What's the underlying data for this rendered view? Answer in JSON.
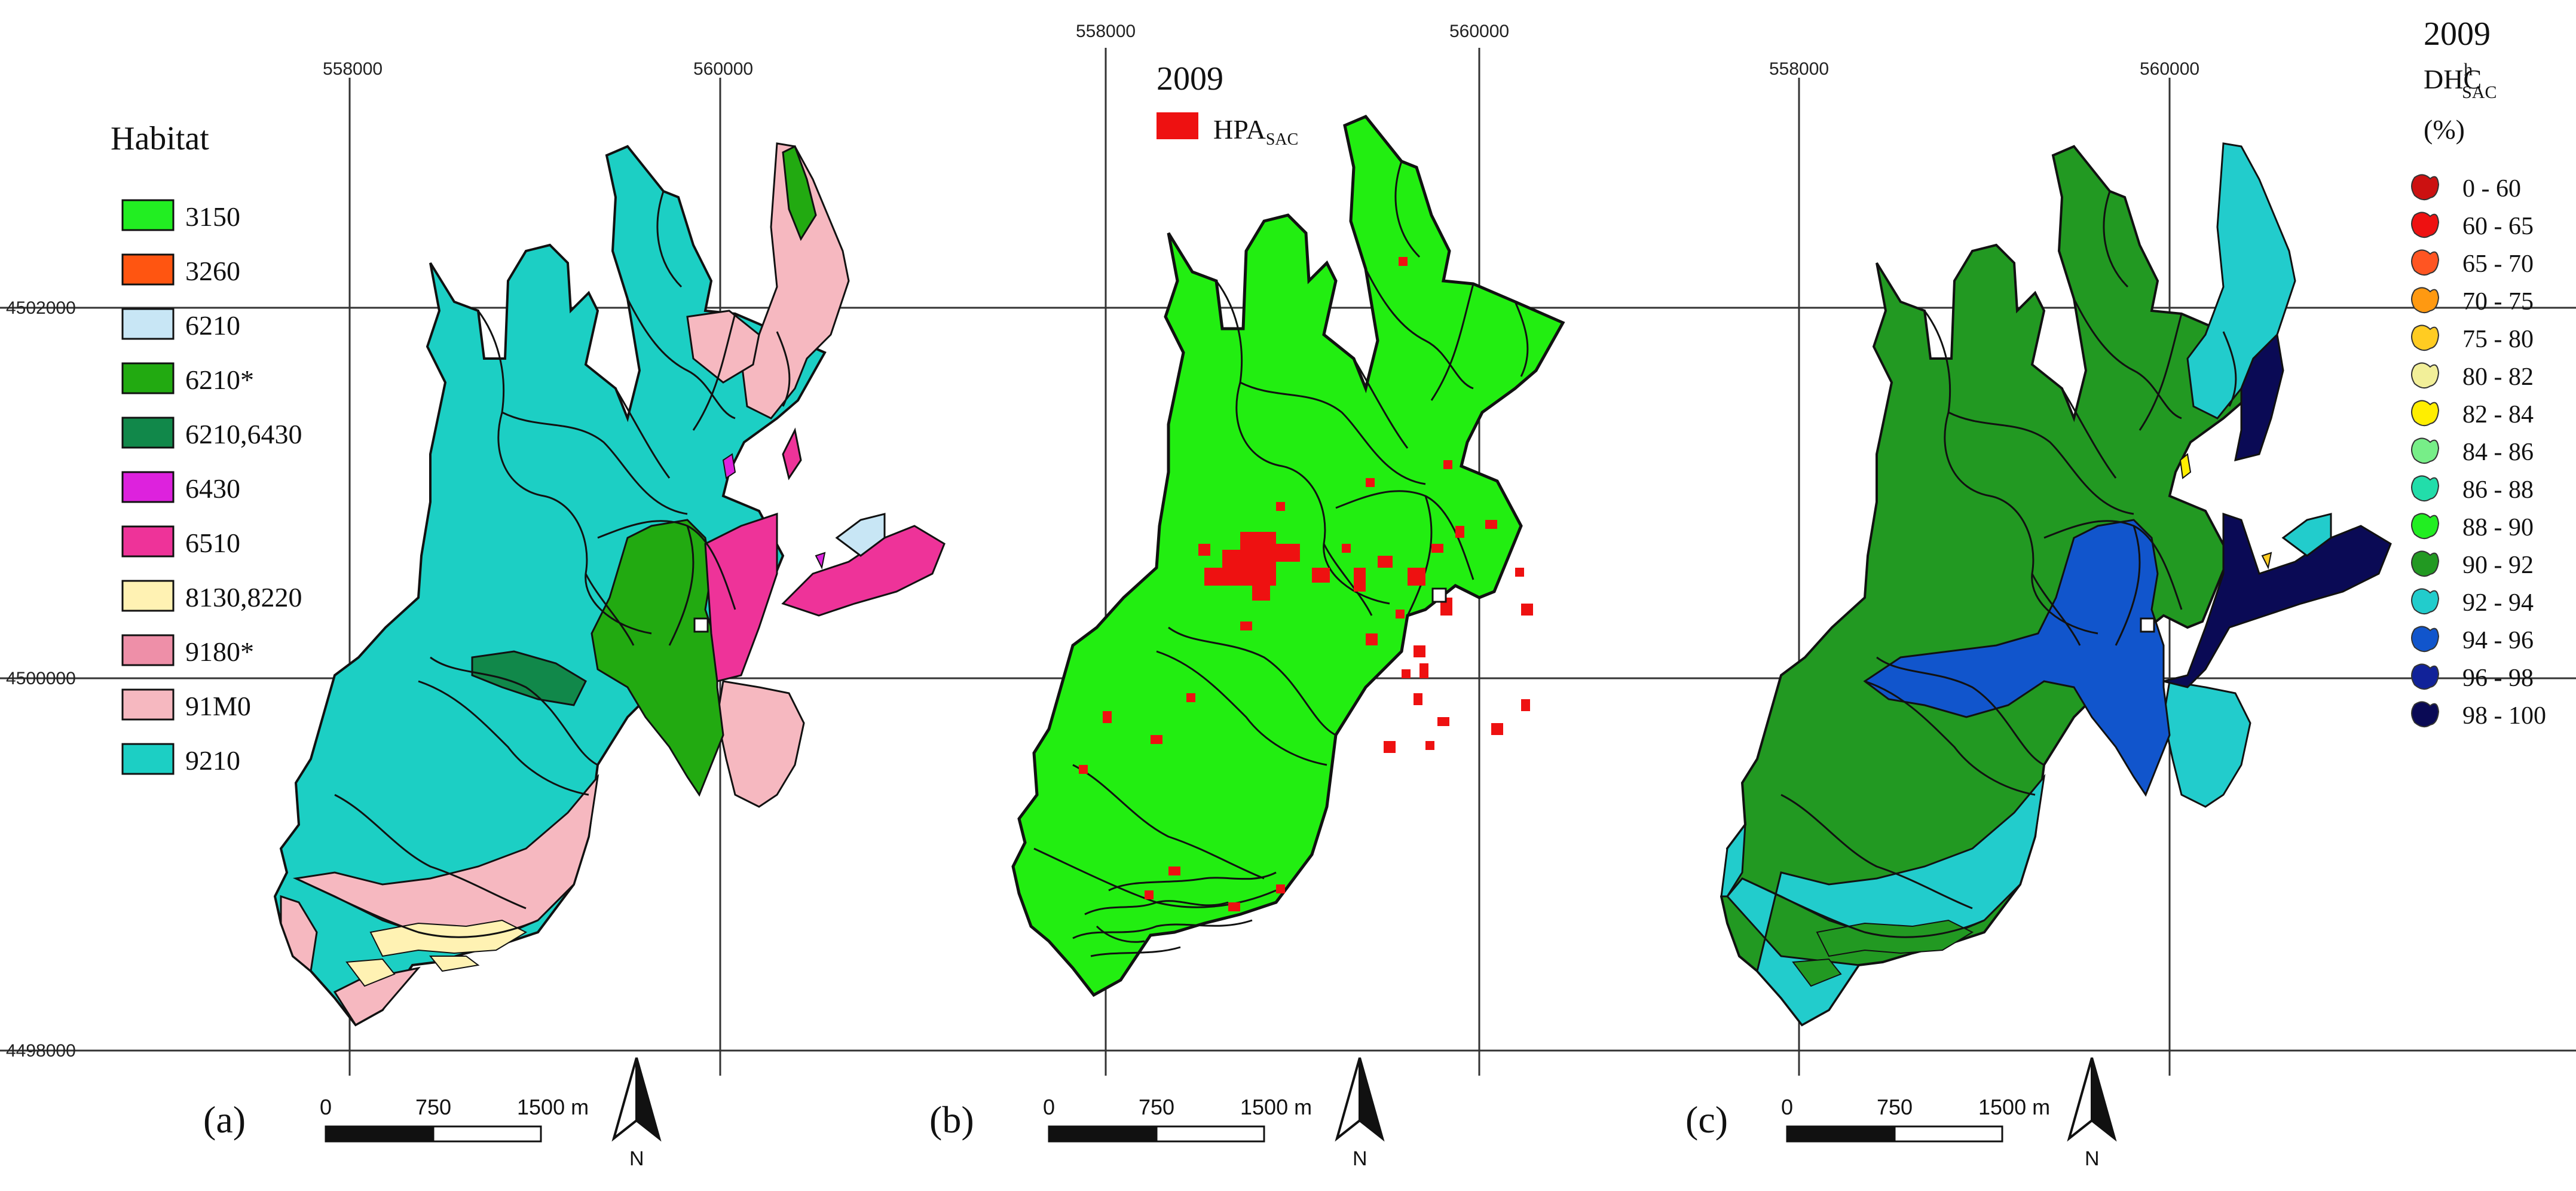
{
  "panels": [
    {
      "label": "(a)"
    },
    {
      "label": "(b)"
    },
    {
      "label": "(c)"
    }
  ],
  "coordinates": {
    "x_ticks": [
      "558000",
      "560000"
    ],
    "y_ticks": [
      "4502000",
      "4500000",
      "4498000"
    ]
  },
  "legend_a": {
    "title": "Habitat",
    "items": [
      {
        "label": "3150",
        "color": "#22ee22"
      },
      {
        "label": "3260",
        "color": "#ff5511"
      },
      {
        "label": "6210",
        "color": "#c8e6f5"
      },
      {
        "label": "6210*",
        "color": "#22aa11"
      },
      {
        "label": "6210,6430",
        "color": "#11884a"
      },
      {
        "label": "6430",
        "color": "#dd22dd"
      },
      {
        "label": "6510",
        "color": "#ee3399"
      },
      {
        "label": "8130,8220",
        "color": "#fff2b3"
      },
      {
        "label": "9180*",
        "color": "#ee8fa8"
      },
      {
        "label": "91M0",
        "color": "#f6b8c0"
      },
      {
        "label": "9210",
        "color": "#1ccfc4"
      }
    ]
  },
  "legend_b": {
    "year": "2009",
    "item_main": "HPA",
    "item_sub": "SAC",
    "color": "#ee1111",
    "base_color": "#22ee11"
  },
  "legend_c": {
    "year": "2009",
    "title_main": "DHC",
    "title_sup": "h",
    "title_sub": "SAC",
    "unit": "(%)",
    "items": [
      {
        "label": "0 - 60",
        "color": "#cc1111"
      },
      {
        "label": "60 - 65",
        "color": "#ee1111"
      },
      {
        "label": "65 - 70",
        "color": "#ff5522"
      },
      {
        "label": "70 - 75",
        "color": "#ff9911"
      },
      {
        "label": "75 - 80",
        "color": "#ffcc22"
      },
      {
        "label": "80 - 82",
        "color": "#f2ef99"
      },
      {
        "label": "82 - 84",
        "color": "#ffee00"
      },
      {
        "label": "84 - 86",
        "color": "#77ee88"
      },
      {
        "label": "86 - 88",
        "color": "#22ddaa"
      },
      {
        "label": "88 - 90",
        "color": "#22ee22"
      },
      {
        "label": "90 - 92",
        "color": "#229922"
      },
      {
        "label": "92 - 94",
        "color": "#22cccc"
      },
      {
        "label": "94 - 96",
        "color": "#1155cc"
      },
      {
        "label": "96 - 98",
        "color": "#112299"
      },
      {
        "label": "98 - 100",
        "color": "#0a0a55"
      }
    ]
  },
  "scalebar": {
    "labels": [
      "0",
      "750",
      "1500 m"
    ]
  },
  "north": {
    "label": "N"
  }
}
